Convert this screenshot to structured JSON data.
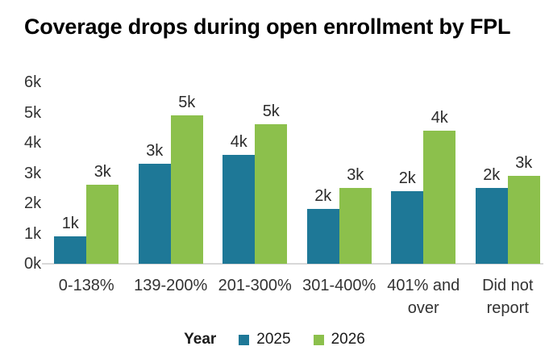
{
  "chart_data": {
    "type": "bar",
    "title": "Coverage drops during open enrollment by FPL",
    "categories": [
      "0-138%",
      "139-200%",
      "201-300%",
      "301-400%",
      "401% and over",
      "Did not report"
    ],
    "series": [
      {
        "name": "2025",
        "color": "#1e7897",
        "values": [
          0.9,
          3.3,
          3.6,
          1.8,
          2.4,
          2.5
        ],
        "labels": [
          "1k",
          "3k",
          "4k",
          "2k",
          "2k",
          "2k"
        ]
      },
      {
        "name": "2026",
        "color": "#8cc04c",
        "values": [
          2.6,
          4.9,
          4.6,
          2.5,
          4.4,
          2.9
        ],
        "labels": [
          "3k",
          "5k",
          "5k",
          "3k",
          "4k",
          "3k"
        ]
      }
    ],
    "yticks": [
      "0k",
      "1k",
      "2k",
      "3k",
      "4k",
      "5k",
      "6k"
    ],
    "ylim": [
      0,
      6
    ],
    "xlabel": "",
    "ylabel": "",
    "grid": false,
    "legend_title": "Year",
    "legend_position": "bottom",
    "axis_line_color": "#d8d8d8",
    "text_color": "#333333"
  }
}
